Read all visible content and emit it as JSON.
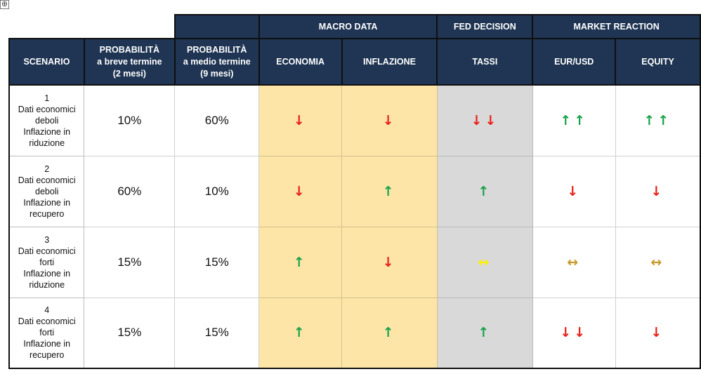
{
  "move_handle": "⊕",
  "headers": {
    "group": {
      "macro": "MACRO DATA",
      "fed": "FED DECISION",
      "market": "MARKET REACTION"
    },
    "scenario": "SCENARIO",
    "prob_short": [
      "PROBABILITÀ",
      "a breve termine",
      "(2 mesi)"
    ],
    "prob_medium": [
      "PROBABILITÀ",
      "a medio termine",
      "(9 mesi)"
    ],
    "economia": "ECONOMIA",
    "inflazione": "INFLAZIONE",
    "tassi": "TASSI",
    "eurusd": "EUR/USD",
    "equity": "EQUITY"
  },
  "colors": {
    "down": "#e8211a",
    "up": "#19a24a",
    "flat_yellow": "#ffef00",
    "flat_gold": "#c79a2a"
  },
  "rows": [
    {
      "scenario": [
        "1",
        "Dati economici",
        "deboli",
        "Inflazione in",
        "riduzione"
      ],
      "prob_short": "10%",
      "prob_medium": "60%",
      "economia": {
        "text": "↓",
        "color": "down"
      },
      "inflazione": {
        "text": "↓",
        "color": "down"
      },
      "tassi": {
        "text": "↓↓",
        "color": "down"
      },
      "eurusd": {
        "text": "↑↑",
        "color": "up"
      },
      "equity": {
        "text": "↑↑",
        "color": "up"
      }
    },
    {
      "scenario": [
        "2",
        "Dati economici",
        "deboli",
        "Inflazione in",
        "recupero"
      ],
      "prob_short": "60%",
      "prob_medium": "10%",
      "economia": {
        "text": "↓",
        "color": "down"
      },
      "inflazione": {
        "text": "↑",
        "color": "up"
      },
      "tassi": {
        "text": "↑",
        "color": "up"
      },
      "eurusd": {
        "text": "↓",
        "color": "down"
      },
      "equity": {
        "text": "↓",
        "color": "down"
      }
    },
    {
      "scenario": [
        "3",
        "Dati economici",
        "forti",
        "Inflazione in",
        "riduzione"
      ],
      "prob_short": "15%",
      "prob_medium": "15%",
      "economia": {
        "text": "↑",
        "color": "up"
      },
      "inflazione": {
        "text": "↓",
        "color": "down"
      },
      "tassi": {
        "text": "↔",
        "color": "flat_yellow"
      },
      "eurusd": {
        "text": "↔",
        "color": "flat_gold"
      },
      "equity": {
        "text": "↔",
        "color": "flat_gold"
      }
    },
    {
      "scenario": [
        "4",
        "Dati economici",
        "forti",
        "Inflazione in",
        "recupero"
      ],
      "prob_short": "15%",
      "prob_medium": "15%",
      "economia": {
        "text": "↑",
        "color": "up"
      },
      "inflazione": {
        "text": "↑",
        "color": "up"
      },
      "tassi": {
        "text": "↑",
        "color": "up"
      },
      "eurusd": {
        "text": "↓↓",
        "color": "down"
      },
      "equity": {
        "text": "↓",
        "color": "down"
      }
    }
  ]
}
